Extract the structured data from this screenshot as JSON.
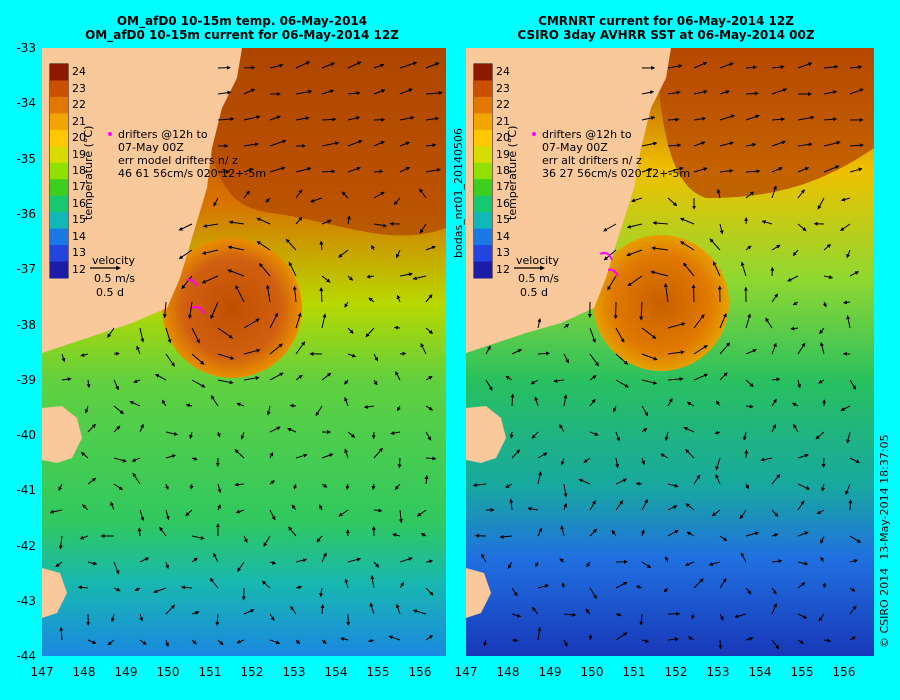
{
  "left_panel": {
    "title_line1": "OM_afD0 10-15m temp. 06-May-2014",
    "title_line2": "OM_afD0 10-15m current for 06-May-2014 12Z",
    "drifter_note": [
      "drifters @12h to",
      "07-May 00Z",
      "err model drifters n/ z",
      "46   61    56cm/s 020 12+-5m"
    ]
  },
  "right_panel": {
    "title_line1": "CMRNRT current for 06-May-2014 12Z",
    "title_line2": "CSIRO 3day AVHRR SST at 06-May-2014 00Z",
    "drifter_note": [
      "drifters @12h to",
      "07-May 00Z",
      "err alt drifters n/ z",
      "36 27 56cm/s 020 12+-5m"
    ]
  },
  "colorbar": {
    "label": "temperature (°C)",
    "ticks": [
      "24",
      "23",
      "22",
      "21",
      "20",
      "19",
      "18",
      "17",
      "16",
      "15",
      "14",
      "13",
      "12"
    ],
    "colors": [
      "#8b1a00",
      "#c85000",
      "#e27800",
      "#f2a400",
      "#ffc800",
      "#d6dc00",
      "#90e000",
      "#3ccf20",
      "#18c870",
      "#12b8b8",
      "#1a78e6",
      "#2444e0",
      "#1c1ca8"
    ]
  },
  "velocity_key": {
    "label": "velocity",
    "speed": "0.5 m/s",
    "duration": "0.5 d"
  },
  "axes": {
    "lat_labels": [
      "-33",
      "-34",
      "-35",
      "-36",
      "-37",
      "-38",
      "-39",
      "-40",
      "-41",
      "-42",
      "-43",
      "-44"
    ],
    "lon_labels": [
      "147",
      "148",
      "149",
      "150",
      "151",
      "152",
      "153",
      "154",
      "155",
      "156"
    ]
  },
  "side_id": "bodas_nrt01_20140506",
  "credit": {
    "copyright": "© CSIRO 2014",
    "timestamp": "13-May-2014 18:37:05"
  },
  "colors": {
    "background": "#00ffff",
    "land": "#f9c89b",
    "drifter": "#ff00ff",
    "arrow": "#000000"
  }
}
